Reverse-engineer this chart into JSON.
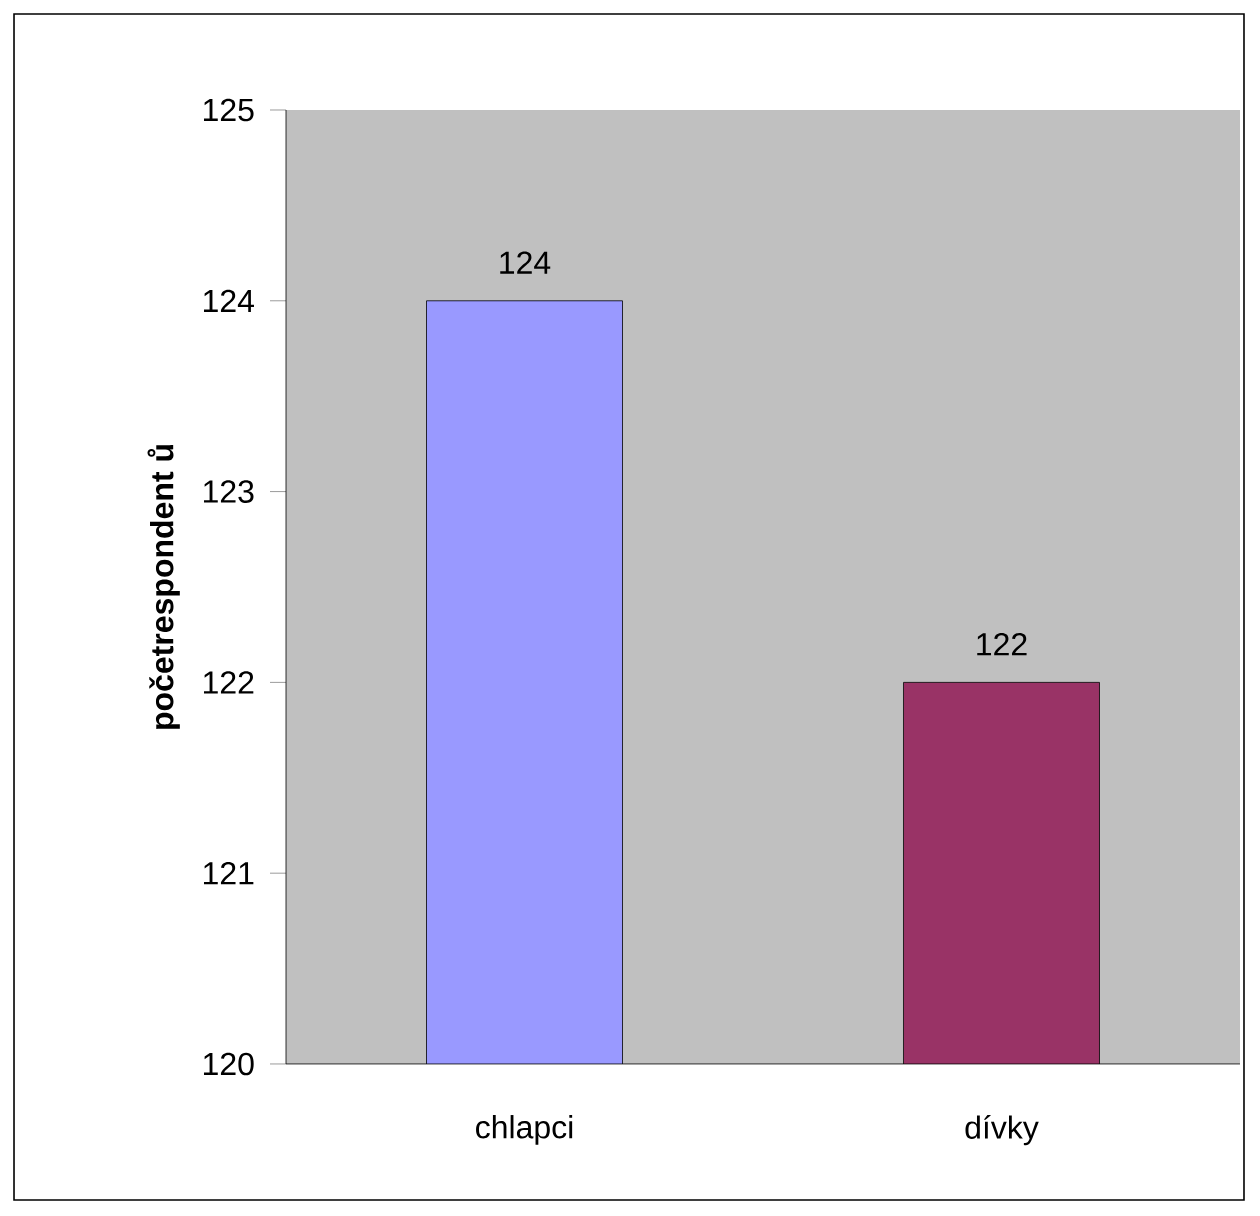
{
  "chart_data": {
    "type": "bar",
    "ylabel": "početrespondent ů",
    "categories": [
      "chlapci",
      "dívky"
    ],
    "values": [
      124,
      122
    ],
    "colors": [
      "#9999ff",
      "#993366"
    ],
    "ylim": [
      120,
      125
    ],
    "yticks": [
      120,
      121,
      122,
      123,
      124,
      125
    ],
    "data_labels": true
  }
}
